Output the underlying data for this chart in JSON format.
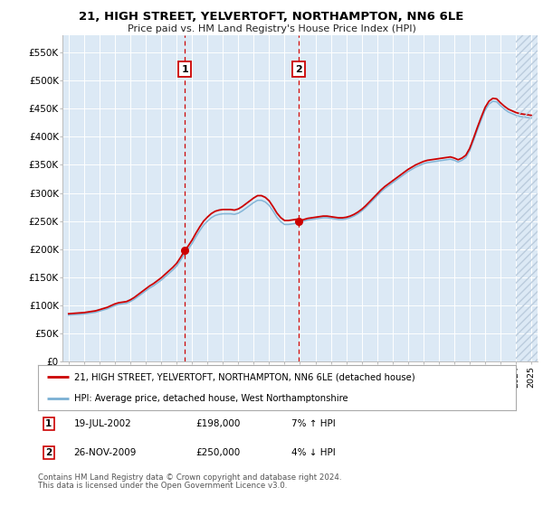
{
  "title": "21, HIGH STREET, YELVERTOFT, NORTHAMPTON, NN6 6LE",
  "subtitle": "Price paid vs. HM Land Registry's House Price Index (HPI)",
  "legend_line1": "21, HIGH STREET, YELVERTOFT, NORTHAMPTON, NN6 6LE (detached house)",
  "legend_line2": "HPI: Average price, detached house, West Northamptonshire",
  "transaction1_date": "19-JUL-2002",
  "transaction1_price": "£198,000",
  "transaction1_hpi": "7% ↑ HPI",
  "transaction2_date": "26-NOV-2009",
  "transaction2_price": "£250,000",
  "transaction2_hpi": "4% ↓ HPI",
  "footnote_line1": "Contains HM Land Registry data © Crown copyright and database right 2024.",
  "footnote_line2": "This data is licensed under the Open Government Licence v3.0.",
  "bg_color": "#ffffff",
  "plot_bg_color": "#dce9f5",
  "grid_color": "#ffffff",
  "hpi_line_color": "#7ab0d4",
  "price_line_color": "#cc0000",
  "vline_color": "#cc0000",
  "ylim": [
    0,
    580000
  ],
  "yticks": [
    0,
    50000,
    100000,
    150000,
    200000,
    250000,
    300000,
    350000,
    400000,
    450000,
    500000,
    550000
  ],
  "transaction1_x": 2002.54,
  "transaction2_x": 2009.9,
  "hatch_start_x": 2024.0,
  "xmin": 1994.6,
  "xmax": 2025.4
}
